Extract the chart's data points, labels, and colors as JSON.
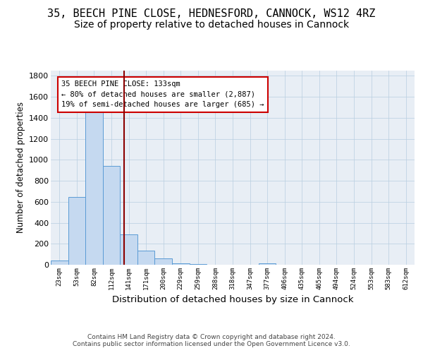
{
  "title": "35, BEECH PINE CLOSE, HEDNESFORD, CANNOCK, WS12 4RZ",
  "subtitle": "Size of property relative to detached houses in Cannock",
  "xlabel": "Distribution of detached houses by size in Cannock",
  "ylabel": "Number of detached properties",
  "categories": [
    "23sqm",
    "53sqm",
    "82sqm",
    "112sqm",
    "141sqm",
    "171sqm",
    "200sqm",
    "229sqm",
    "259sqm",
    "288sqm",
    "318sqm",
    "347sqm",
    "377sqm",
    "406sqm",
    "435sqm",
    "465sqm",
    "494sqm",
    "524sqm",
    "553sqm",
    "583sqm",
    "612sqm"
  ],
  "values": [
    40,
    645,
    1490,
    940,
    290,
    135,
    60,
    15,
    8,
    3,
    3,
    3,
    12,
    0,
    0,
    0,
    0,
    0,
    0,
    0,
    0
  ],
  "bar_color": "#c5d9f0",
  "bar_edge_color": "#5b9bd5",
  "property_line_x": 3.72,
  "property_line_color": "#8b0000",
  "annotation_text": "35 BEECH PINE CLOSE: 133sqm\n← 80% of detached houses are smaller (2,887)\n19% of semi-detached houses are larger (685) →",
  "annotation_box_color": "#ffffff",
  "annotation_box_edge": "#cc0000",
  "footer": "Contains HM Land Registry data © Crown copyright and database right 2024.\nContains public sector information licensed under the Open Government Licence v3.0.",
  "ylim": [
    0,
    1850
  ],
  "yticks": [
    0,
    200,
    400,
    600,
    800,
    1000,
    1200,
    1400,
    1600,
    1800
  ],
  "title_fontsize": 11,
  "subtitle_fontsize": 10,
  "bg_color": "#e8eef5"
}
